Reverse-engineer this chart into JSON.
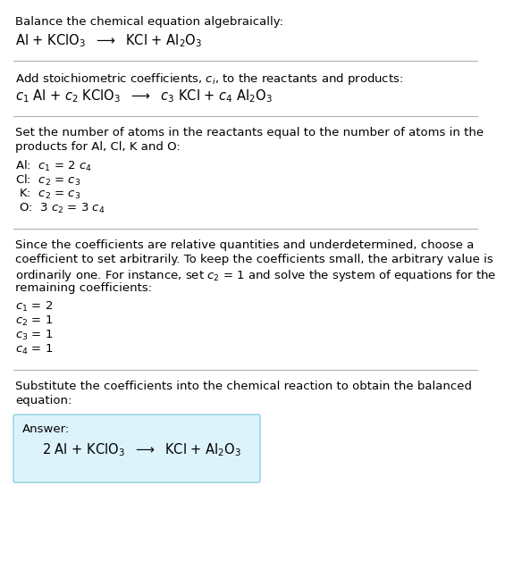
{
  "title_line1": "Balance the chemical equation algebraically:",
  "title_line2_math": "Al + KClO$_3$  $\\longrightarrow$  KCl + Al$_2$O$_3$",
  "section2_intro": "Add stoichiometric coefficients, $c_i$, to the reactants and products:",
  "section2_eq": "$c_1$ Al + $c_2$ KClO$_3$  $\\longrightarrow$  $c_3$ KCl + $c_4$ Al$_2$O$_3$",
  "section3_intro_l1": "Set the number of atoms in the reactants equal to the number of atoms in the",
  "section3_intro_l2": "products for Al, Cl, K and O:",
  "section3_al": "Al:  $c_1$ = 2 $c_4$",
  "section3_cl": "Cl:  $c_2$ = $c_3$",
  "section3_k": " K:  $c_2$ = $c_3$",
  "section3_o": " O:  3 $c_2$ = 3 $c_4$",
  "section4_intro_l1": "Since the coefficients are relative quantities and underdetermined, choose a",
  "section4_intro_l2": "coefficient to set arbitrarily. To keep the coefficients small, the arbitrary value is",
  "section4_intro_l3": "ordinarily one. For instance, set $c_2$ = 1 and solve the system of equations for the",
  "section4_intro_l4": "remaining coefficients:",
  "section4_c1": "$c_1$ = 2",
  "section4_c2": "$c_2$ = 1",
  "section4_c3": "$c_3$ = 1",
  "section4_c4": "$c_4$ = 1",
  "section5_intro_l1": "Substitute the coefficients into the chemical reaction to obtain the balanced",
  "section5_intro_l2": "equation:",
  "answer_label": "Answer:",
  "answer_eq": "2 Al + KClO$_3$  $\\longrightarrow$  KCl + Al$_2$O$_3$",
  "bg_color": "#ffffff",
  "text_color": "#000000",
  "box_facecolor": "#ddf3fb",
  "box_edgecolor": "#8ccfdf",
  "divider_color": "#aaaaaa",
  "font_size": 9.5,
  "font_size_eq": 10.5
}
